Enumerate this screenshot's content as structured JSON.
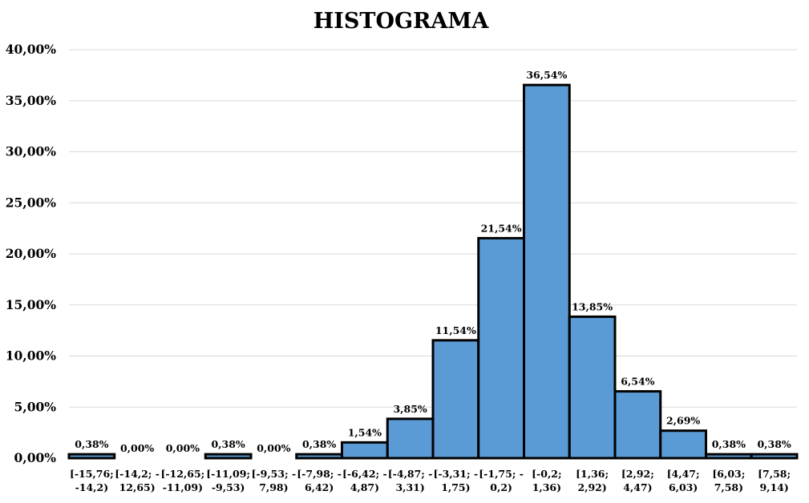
{
  "chart_data": {
    "type": "bar",
    "title": "HISTOGRAMA",
    "xlabel": "",
    "ylabel": "",
    "ylim": [
      0,
      40
    ],
    "y_ticks": [
      "0,00%",
      "5,00%",
      "10,00%",
      "15,00%",
      "20,00%",
      "25,00%",
      "30,00%",
      "35,00%",
      "40,00%"
    ],
    "grid": true,
    "legend": "none",
    "bar_color": "#5b9bd5",
    "bar_edge_color": "#000000",
    "categories": [
      [
        "[-15,76;",
        "-14,2)"
      ],
      [
        "[-14,2; -",
        "12,65)"
      ],
      [
        "[-12,65;",
        "-11,09)"
      ],
      [
        "[-11,09;",
        "-9,53)"
      ],
      [
        "[-9,53; -",
        "7,98)"
      ],
      [
        "[-7,98; -",
        "6,42)"
      ],
      [
        "[-6,42; -",
        "4,87)"
      ],
      [
        "[-4,87; -",
        "3,31)"
      ],
      [
        "[-3,31; -",
        "1,75)"
      ],
      [
        "[-1,75; -",
        "0,2)"
      ],
      [
        "[-0,2;",
        "1,36)"
      ],
      [
        "[1,36;",
        "2,92)"
      ],
      [
        "[2,92;",
        "4,47)"
      ],
      [
        "[4,47;",
        "6,03)"
      ],
      [
        "[6,03;",
        "7,58)"
      ],
      [
        "[7,58;",
        "9,14)"
      ]
    ],
    "values": [
      0.38,
      0.0,
      0.0,
      0.38,
      0.0,
      0.38,
      1.54,
      3.85,
      11.54,
      21.54,
      36.54,
      13.85,
      6.54,
      2.69,
      0.38,
      0.38
    ],
    "value_labels": [
      "0,38%",
      "0,00%",
      "0,00%",
      "0,38%",
      "0,00%",
      "0,38%",
      "1,54%",
      "3,85%",
      "11,54%",
      "21,54%",
      "36,54%",
      "13,85%",
      "6,54%",
      "2,69%",
      "0,38%",
      "0,38%"
    ]
  }
}
